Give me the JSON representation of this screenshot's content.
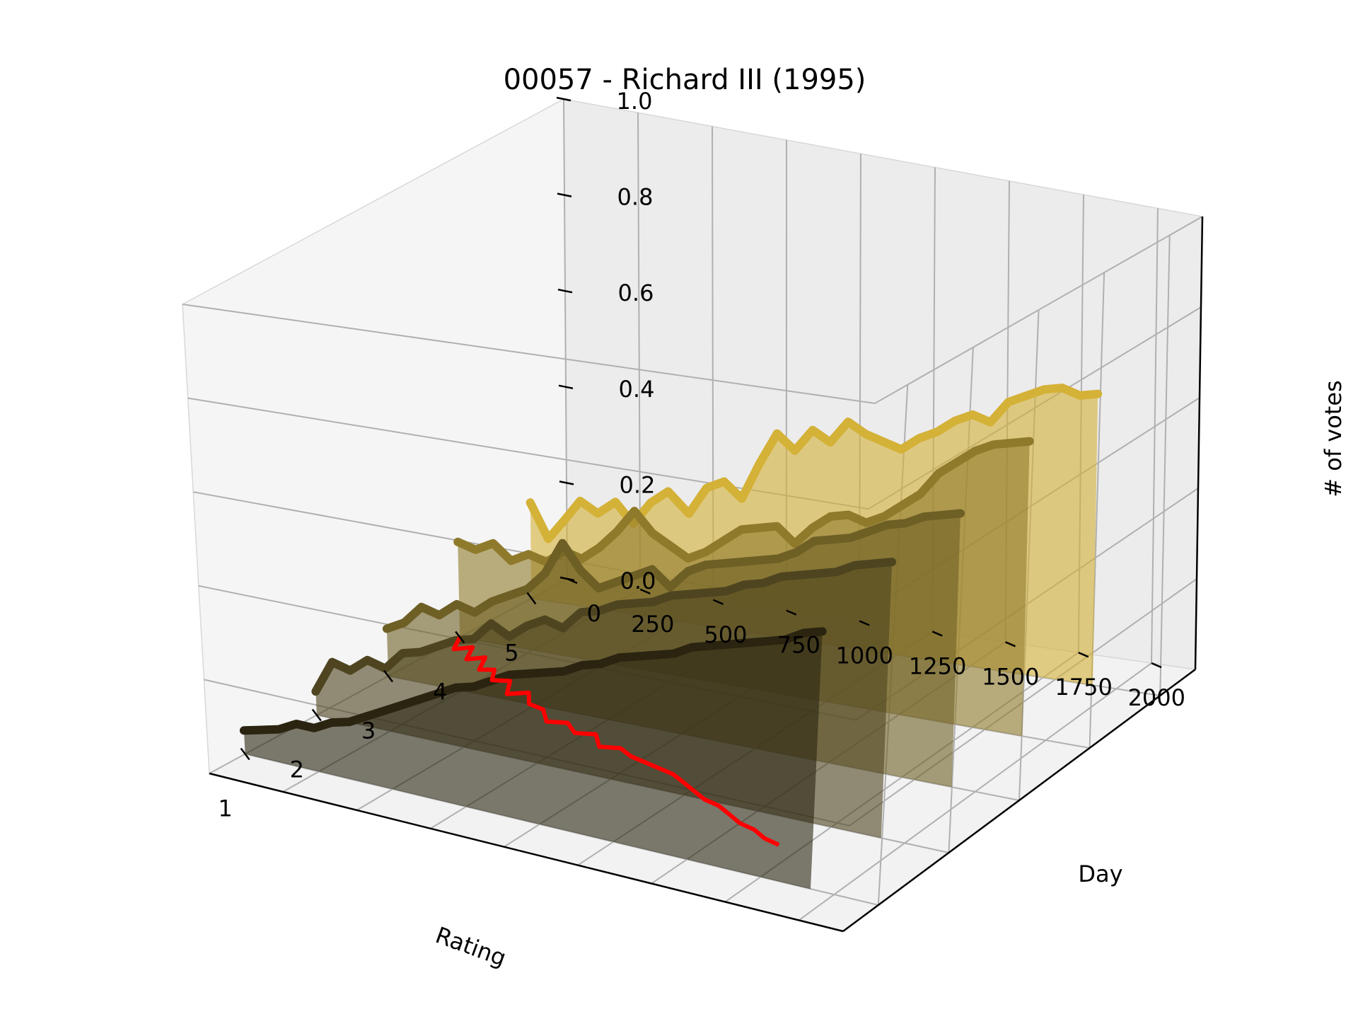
{
  "chart_data": {
    "type": "line",
    "projection": "3d",
    "title": "00057 - Richard III (1995)",
    "xlabel": "Rating",
    "ylabel": "Day",
    "zlabel": "# of votes",
    "rating_ticks": [
      "5",
      "4",
      "3",
      "2",
      "1"
    ],
    "day_ticks": [
      "0",
      "250",
      "500",
      "750",
      "1000",
      "1250",
      "1500",
      "1750",
      "2000"
    ],
    "votes_ticks": [
      "0.0",
      "0.2",
      "0.4",
      "0.6",
      "0.8",
      "1.0"
    ],
    "xlim": [
      0.5,
      5.5
    ],
    "ylim": [
      0,
      2150
    ],
    "zlim": [
      0,
      1
    ],
    "grid": true,
    "series": [
      {
        "rating": 5,
        "color": "#d4b137",
        "points": [
          [
            0,
            0.2
          ],
          [
            60,
            0.13
          ],
          [
            110,
            0.17
          ],
          [
            170,
            0.22
          ],
          [
            230,
            0.2
          ],
          [
            290,
            0.23
          ],
          [
            350,
            0.19
          ],
          [
            410,
            0.24
          ],
          [
            470,
            0.27
          ],
          [
            540,
            0.23
          ],
          [
            600,
            0.29
          ],
          [
            660,
            0.31
          ],
          [
            720,
            0.28
          ],
          [
            780,
            0.36
          ],
          [
            840,
            0.43
          ],
          [
            900,
            0.4
          ],
          [
            960,
            0.45
          ],
          [
            1020,
            0.43
          ],
          [
            1080,
            0.48
          ],
          [
            1140,
            0.46
          ],
          [
            1200,
            0.45
          ],
          [
            1260,
            0.44
          ],
          [
            1320,
            0.47
          ],
          [
            1380,
            0.49
          ],
          [
            1440,
            0.52
          ],
          [
            1500,
            0.54
          ],
          [
            1560,
            0.53
          ],
          [
            1620,
            0.58
          ],
          [
            1680,
            0.6
          ],
          [
            1740,
            0.62
          ],
          [
            1800,
            0.63
          ],
          [
            1860,
            0.62
          ],
          [
            1920,
            0.63
          ]
        ]
      },
      {
        "rating": 4,
        "color": "#8f7a2b",
        "points": [
          [
            0,
            0.2
          ],
          [
            60,
            0.19
          ],
          [
            120,
            0.21
          ],
          [
            180,
            0.18
          ],
          [
            240,
            0.2
          ],
          [
            300,
            0.19
          ],
          [
            360,
            0.22
          ],
          [
            420,
            0.21
          ],
          [
            480,
            0.24
          ],
          [
            540,
            0.28
          ],
          [
            600,
            0.33
          ],
          [
            660,
            0.29
          ],
          [
            720,
            0.27
          ],
          [
            780,
            0.25
          ],
          [
            840,
            0.27
          ],
          [
            900,
            0.3
          ],
          [
            960,
            0.33
          ],
          [
            1020,
            0.34
          ],
          [
            1080,
            0.35
          ],
          [
            1140,
            0.32
          ],
          [
            1200,
            0.36
          ],
          [
            1260,
            0.39
          ],
          [
            1320,
            0.4
          ],
          [
            1380,
            0.39
          ],
          [
            1440,
            0.41
          ],
          [
            1500,
            0.44
          ],
          [
            1560,
            0.47
          ],
          [
            1620,
            0.52
          ],
          [
            1680,
            0.55
          ],
          [
            1740,
            0.58
          ],
          [
            1800,
            0.6
          ],
          [
            1860,
            0.61
          ],
          [
            1920,
            0.62
          ]
        ]
      },
      {
        "rating": 3,
        "color": "#6e5f25",
        "points": [
          [
            0,
            0.1
          ],
          [
            60,
            0.12
          ],
          [
            120,
            0.16
          ],
          [
            180,
            0.15
          ],
          [
            240,
            0.18
          ],
          [
            300,
            0.17
          ],
          [
            360,
            0.2
          ],
          [
            420,
            0.22
          ],
          [
            480,
            0.24
          ],
          [
            540,
            0.28
          ],
          [
            600,
            0.35
          ],
          [
            660,
            0.3
          ],
          [
            720,
            0.27
          ],
          [
            780,
            0.29
          ],
          [
            840,
            0.31
          ],
          [
            900,
            0.33
          ],
          [
            960,
            0.3
          ],
          [
            1020,
            0.34
          ],
          [
            1080,
            0.36
          ],
          [
            1140,
            0.37
          ],
          [
            1200,
            0.38
          ],
          [
            1260,
            0.39
          ],
          [
            1320,
            0.4
          ],
          [
            1380,
            0.42
          ],
          [
            1440,
            0.45
          ],
          [
            1500,
            0.46
          ],
          [
            1560,
            0.47
          ],
          [
            1620,
            0.49
          ],
          [
            1680,
            0.51
          ],
          [
            1740,
            0.52
          ],
          [
            1800,
            0.54
          ],
          [
            1860,
            0.55
          ],
          [
            1920,
            0.56
          ]
        ]
      },
      {
        "rating": 2,
        "color": "#4e4520",
        "points": [
          [
            0,
            0.05
          ],
          [
            60,
            0.12
          ],
          [
            120,
            0.11
          ],
          [
            180,
            0.14
          ],
          [
            240,
            0.13
          ],
          [
            300,
            0.17
          ],
          [
            360,
            0.18
          ],
          [
            420,
            0.2
          ],
          [
            480,
            0.22
          ],
          [
            540,
            0.23
          ],
          [
            600,
            0.27
          ],
          [
            660,
            0.25
          ],
          [
            720,
            0.28
          ],
          [
            780,
            0.3
          ],
          [
            840,
            0.29
          ],
          [
            900,
            0.33
          ],
          [
            960,
            0.34
          ],
          [
            1020,
            0.36
          ],
          [
            1080,
            0.37
          ],
          [
            1140,
            0.38
          ],
          [
            1200,
            0.4
          ],
          [
            1260,
            0.41
          ],
          [
            1320,
            0.42
          ],
          [
            1380,
            0.43
          ],
          [
            1440,
            0.45
          ],
          [
            1500,
            0.46
          ],
          [
            1560,
            0.48
          ],
          [
            1620,
            0.49
          ],
          [
            1680,
            0.5
          ],
          [
            1740,
            0.51
          ],
          [
            1800,
            0.53
          ],
          [
            1860,
            0.54
          ],
          [
            1920,
            0.55
          ]
        ]
      },
      {
        "rating": 1,
        "color": "#2a2410",
        "points": [
          [
            0,
            0.05
          ],
          [
            60,
            0.06
          ],
          [
            120,
            0.07
          ],
          [
            180,
            0.09
          ],
          [
            240,
            0.09
          ],
          [
            300,
            0.11
          ],
          [
            360,
            0.12
          ],
          [
            420,
            0.14
          ],
          [
            480,
            0.16
          ],
          [
            540,
            0.18
          ],
          [
            600,
            0.2
          ],
          [
            660,
            0.22
          ],
          [
            720,
            0.24
          ],
          [
            780,
            0.25
          ],
          [
            840,
            0.27
          ],
          [
            900,
            0.29
          ],
          [
            960,
            0.3
          ],
          [
            1020,
            0.31
          ],
          [
            1080,
            0.32
          ],
          [
            1140,
            0.34
          ],
          [
            1200,
            0.35
          ],
          [
            1260,
            0.37
          ],
          [
            1320,
            0.38
          ],
          [
            1380,
            0.39
          ],
          [
            1440,
            0.4
          ],
          [
            1500,
            0.42
          ],
          [
            1560,
            0.43
          ],
          [
            1620,
            0.44
          ],
          [
            1680,
            0.45
          ],
          [
            1740,
            0.46
          ],
          [
            1800,
            0.47
          ],
          [
            1860,
            0.49
          ],
          [
            1920,
            0.5
          ]
        ]
      }
    ],
    "mean_rating": {
      "color": "#ff0000",
      "points": [
        [
          0,
          4.0
        ],
        [
          40,
          3.75
        ],
        [
          80,
          3.85
        ],
        [
          120,
          3.6
        ],
        [
          160,
          3.7
        ],
        [
          200,
          3.45
        ],
        [
          240,
          3.5
        ],
        [
          280,
          3.3
        ],
        [
          330,
          3.35
        ],
        [
          380,
          3.1
        ],
        [
          430,
          3.2
        ],
        [
          480,
          3.0
        ],
        [
          540,
          2.95
        ],
        [
          600,
          2.75
        ],
        [
          660,
          2.8
        ],
        [
          720,
          2.65
        ],
        [
          780,
          2.7
        ],
        [
          840,
          2.5
        ],
        [
          900,
          2.55
        ],
        [
          960,
          2.45
        ],
        [
          1020,
          2.4
        ],
        [
          1080,
          2.35
        ],
        [
          1140,
          2.3
        ],
        [
          1200,
          2.2
        ],
        [
          1260,
          2.1
        ],
        [
          1320,
          2.0
        ],
        [
          1380,
          1.95
        ],
        [
          1440,
          1.85
        ],
        [
          1500,
          1.75
        ],
        [
          1560,
          1.7
        ],
        [
          1620,
          1.6
        ],
        [
          1680,
          1.55
        ]
      ]
    }
  }
}
